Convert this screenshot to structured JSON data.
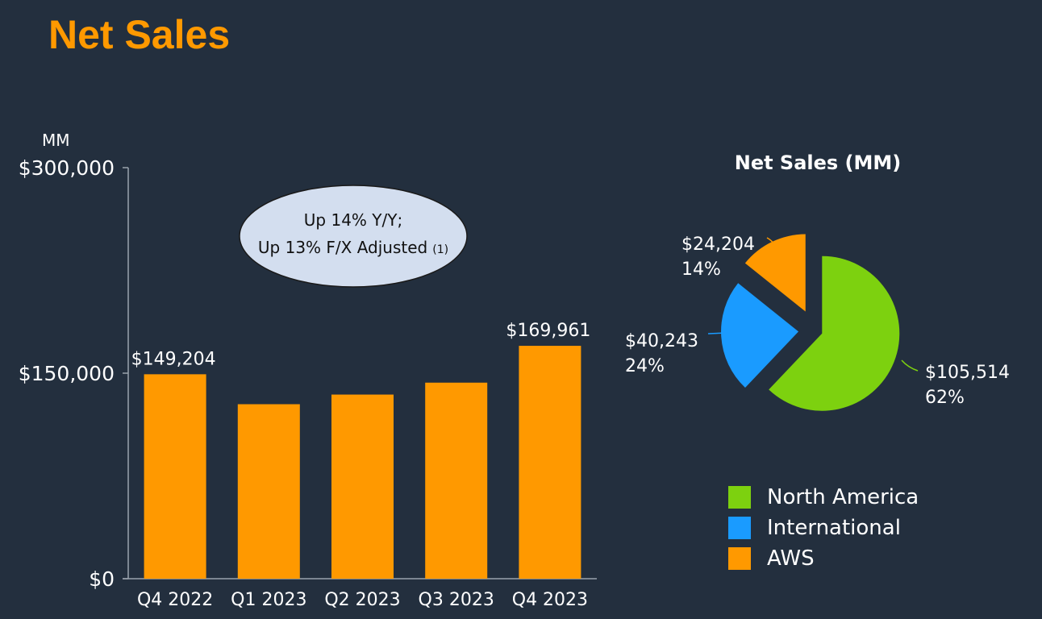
{
  "page": {
    "title": "Net Sales"
  },
  "chart_data": [
    {
      "type": "bar",
      "ylabel": "MM",
      "ylim": [
        0,
        300000
      ],
      "yticks": [
        {
          "value": 0,
          "label": "$0"
        },
        {
          "value": 150000,
          "label": "$150,000"
        },
        {
          "value": 300000,
          "label": "$300,000"
        }
      ],
      "categories": [
        "Q4 2022",
        "Q1 2023",
        "Q2 2023",
        "Q3 2023",
        "Q4 2023"
      ],
      "values": [
        149204,
        127358,
        134383,
        143083,
        169961
      ],
      "data_labels": [
        "$149,204",
        "",
        "",
        "",
        "$169,961"
      ],
      "bar_color": "#ff9900",
      "annotation": {
        "line1": "Up 14% Y/Y;",
        "line2": "Up 13% F/X Adjusted",
        "footnote": "(1)"
      },
      "grid": false
    },
    {
      "type": "pie",
      "title": "Net Sales (MM)",
      "slices": [
        {
          "name": "North America",
          "value": 105514,
          "label": "$105,514",
          "percent": "62%",
          "color": "#7dd10f"
        },
        {
          "name": "International",
          "value": 40243,
          "label": "$40,243",
          "percent": "24%",
          "color": "#1a9bff"
        },
        {
          "name": "AWS",
          "value": 24204,
          "label": "$24,204",
          "percent": "14%",
          "color": "#ff9900"
        }
      ],
      "legend": "bottom-right"
    }
  ]
}
